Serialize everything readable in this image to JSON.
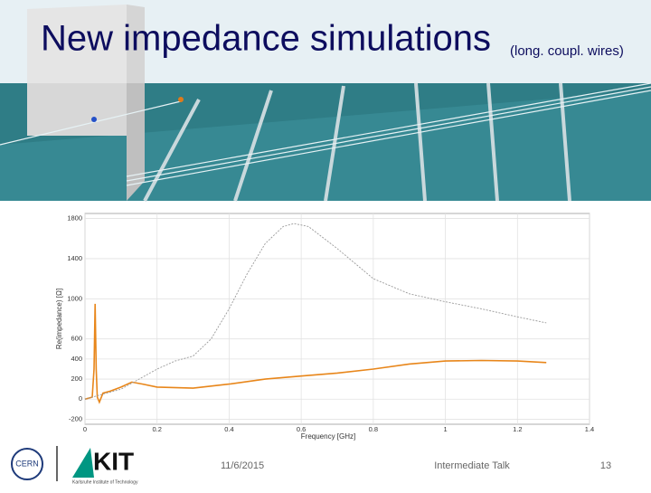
{
  "slide": {
    "title": "New impedance simulations",
    "subtitle": "(long. coupl. wires)",
    "date": "11/6/2015",
    "event": "Intermediate Talk",
    "page": "13",
    "logo_cern": "CERN",
    "logo_kit": "KIT",
    "kit_caption": "Karlsruhe Institute of Technology"
  },
  "chart_data": {
    "type": "line",
    "xlabel": "Frequency [GHz]",
    "ylabel": "Re(impedance) [Ω]",
    "xlim": [
      0,
      1.4
    ],
    "xticks": [
      0,
      0.2,
      0.4,
      0.6,
      0.8,
      1,
      1.2,
      1.4
    ],
    "ylim": [
      -250,
      1850
    ],
    "yticks": [
      -200,
      0,
      200,
      400,
      600,
      1000,
      1400,
      1800
    ],
    "grid": true,
    "series": [
      {
        "color": "#e8861a",
        "dash": false,
        "x": [
          0,
          0.02,
          0.025,
          0.028,
          0.031,
          0.034,
          0.04,
          0.05,
          0.07,
          0.1,
          0.13,
          0.16,
          0.2,
          0.3,
          0.4,
          0.5,
          0.6,
          0.7,
          0.8,
          0.9,
          1.0,
          1.1,
          1.2,
          1.28
        ],
        "values": [
          0,
          20,
          300,
          950,
          300,
          20,
          -30,
          60,
          80,
          120,
          170,
          150,
          120,
          110,
          150,
          200,
          230,
          260,
          300,
          350,
          380,
          385,
          380,
          365
        ]
      },
      {
        "color": "#9a9a9a",
        "dash": true,
        "x": [
          0,
          0.05,
          0.1,
          0.15,
          0.2,
          0.25,
          0.3,
          0.35,
          0.4,
          0.45,
          0.5,
          0.55,
          0.58,
          0.62,
          0.7,
          0.8,
          0.9,
          1.0,
          1.1,
          1.2,
          1.28
        ],
        "values": [
          0,
          50,
          100,
          200,
          300,
          380,
          430,
          600,
          900,
          1250,
          1550,
          1720,
          1750,
          1720,
          1500,
          1200,
          1050,
          970,
          900,
          820,
          760
        ]
      }
    ]
  }
}
